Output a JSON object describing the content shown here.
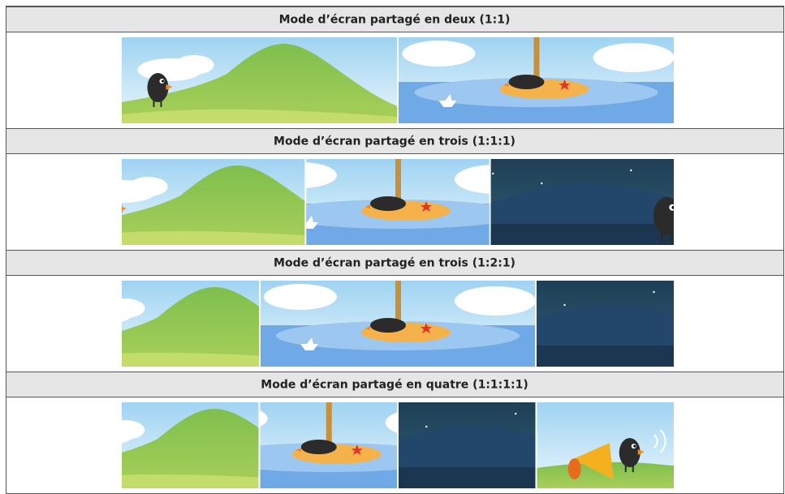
{
  "table": {
    "rows": [
      {
        "title": "Mode d’écran partagé en deux (1:1)"
      },
      {
        "title": "Mode d’écran partagé en trois (1:1:1)"
      },
      {
        "title": "Mode d’écran partagé en trois (1:2:1)"
      },
      {
        "title": "Mode d’écran partagé en quatre (1:1:1:1)"
      }
    ]
  }
}
